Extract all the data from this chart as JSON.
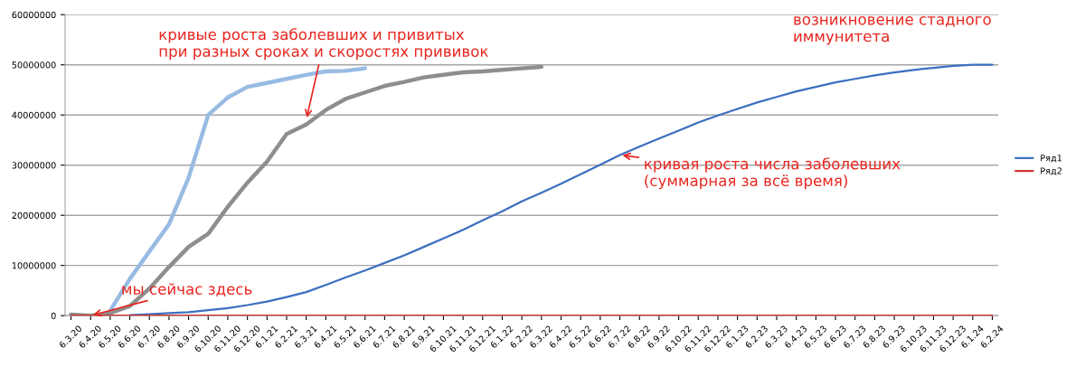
{
  "chart_data": {
    "type": "line",
    "categories": [
      "6.3.20",
      "6.4.20",
      "6.5.20",
      "6.6.20",
      "6.7.20",
      "6.8.20",
      "6.9.20",
      "6.10.20",
      "6.11.20",
      "6.12.20",
      "6.1.21",
      "6.2.21",
      "6.3.21",
      "6.4.21",
      "6.5.21",
      "6.6.21",
      "6.7.21",
      "6.8.21",
      "6.9.21",
      "6.10.21",
      "6.11.21",
      "6.12.21",
      "6.1.22",
      "6.2.22",
      "6.3.22",
      "6.4.22",
      "6.5.22",
      "6.6.22",
      "6.7.22",
      "6.8.22",
      "6.9.22",
      "6.10.22",
      "6.11.22",
      "6.12.22",
      "6.1.23",
      "6.2.23",
      "6.3.23",
      "6.4.23",
      "6.5.23",
      "6.6.23",
      "6.7.23",
      "6.8.23",
      "6.9.23",
      "6.10.23",
      "6.11.23",
      "6.12.23",
      "6.1.24",
      "6.2.24"
    ],
    "series": [
      {
        "name": "Ряд1",
        "color": "#3c6fbf",
        "values": [
          null,
          null,
          null,
          100000,
          300000,
          500000,
          700000,
          1100000,
          1500000,
          2100000,
          2800000,
          3700000,
          4700000,
          6100000,
          7600000,
          9000000,
          10500000,
          12000000,
          13700000,
          15400000,
          17100000,
          19000000,
          20800000,
          22800000,
          24500000,
          26300000,
          28200000,
          30100000,
          32000000,
          33700000,
          35300000,
          36900000,
          38500000,
          39900000,
          41200000,
          42500000,
          43600000,
          44700000,
          45600000,
          46500000,
          47200000,
          47900000,
          48500000,
          49000000,
          49400000,
          49800000,
          50000000,
          50000000
        ]
      },
      {
        "name": "Ряд2",
        "color": "#d0312d",
        "values": [
          0,
          0,
          0,
          0,
          0,
          0,
          0,
          0,
          0,
          0,
          0,
          0,
          0,
          0,
          0,
          0,
          0,
          0,
          0,
          0,
          0,
          0,
          0,
          0,
          0,
          0,
          0,
          0,
          0,
          0,
          0,
          0,
          0,
          0,
          0,
          0,
          0,
          0,
          0,
          0,
          0,
          0,
          0,
          0,
          0,
          0,
          0,
          0
        ]
      },
      {
        "color": "#98bbe3",
        "values": [
          null,
          null,
          1000000,
          7300000,
          12800000,
          18200000,
          27500000,
          40000000,
          43500000,
          45600000,
          46400000,
          47200000,
          48000000,
          48700000,
          48800000,
          49300000,
          null,
          null,
          null,
          null,
          null,
          null,
          null,
          null,
          null,
          null,
          null,
          null,
          null,
          null,
          null,
          null,
          null,
          null,
          null,
          null,
          null,
          null,
          null,
          null,
          null,
          null,
          null,
          null,
          null,
          null,
          null,
          null
        ]
      },
      {
        "color": "#8e8e8e",
        "values": [
          200000,
          0,
          500000,
          1900000,
          5400000,
          9700000,
          13700000,
          16300000,
          21700000,
          26500000,
          30700000,
          36200000,
          38100000,
          41000000,
          43200000,
          44500000,
          45800000,
          46600000,
          47500000,
          48000000,
          48500000,
          48700000,
          49000000,
          49300000,
          49600000,
          null,
          null,
          null,
          null,
          null,
          null,
          null,
          null,
          null,
          null,
          null,
          null,
          null,
          null,
          null,
          null,
          null,
          null,
          null,
          null,
          null,
          null,
          null
        ]
      }
    ],
    "ylim": [
      0,
      60000000
    ],
    "yticks": [
      0,
      10000000,
      20000000,
      30000000,
      40000000,
      50000000,
      60000000
    ],
    "grid": "y",
    "legend": "right",
    "marker": "none",
    "line_style": "solid",
    "annotations": [
      {
        "text": "кривые роста заболевших и привитых\nпри разных сроках и скоростях прививок",
        "x": "6.3.21",
        "y": 39000000
      },
      {
        "text": "мы сейчас здесь",
        "x": "6.4.20",
        "y": 0
      },
      {
        "text": "кривая роста числа заболевших\n(суммарная за всё время)",
        "x": "6.7.22",
        "y": 32000000
      },
      "возникновение стадного\nиммунитета"
    ]
  }
}
